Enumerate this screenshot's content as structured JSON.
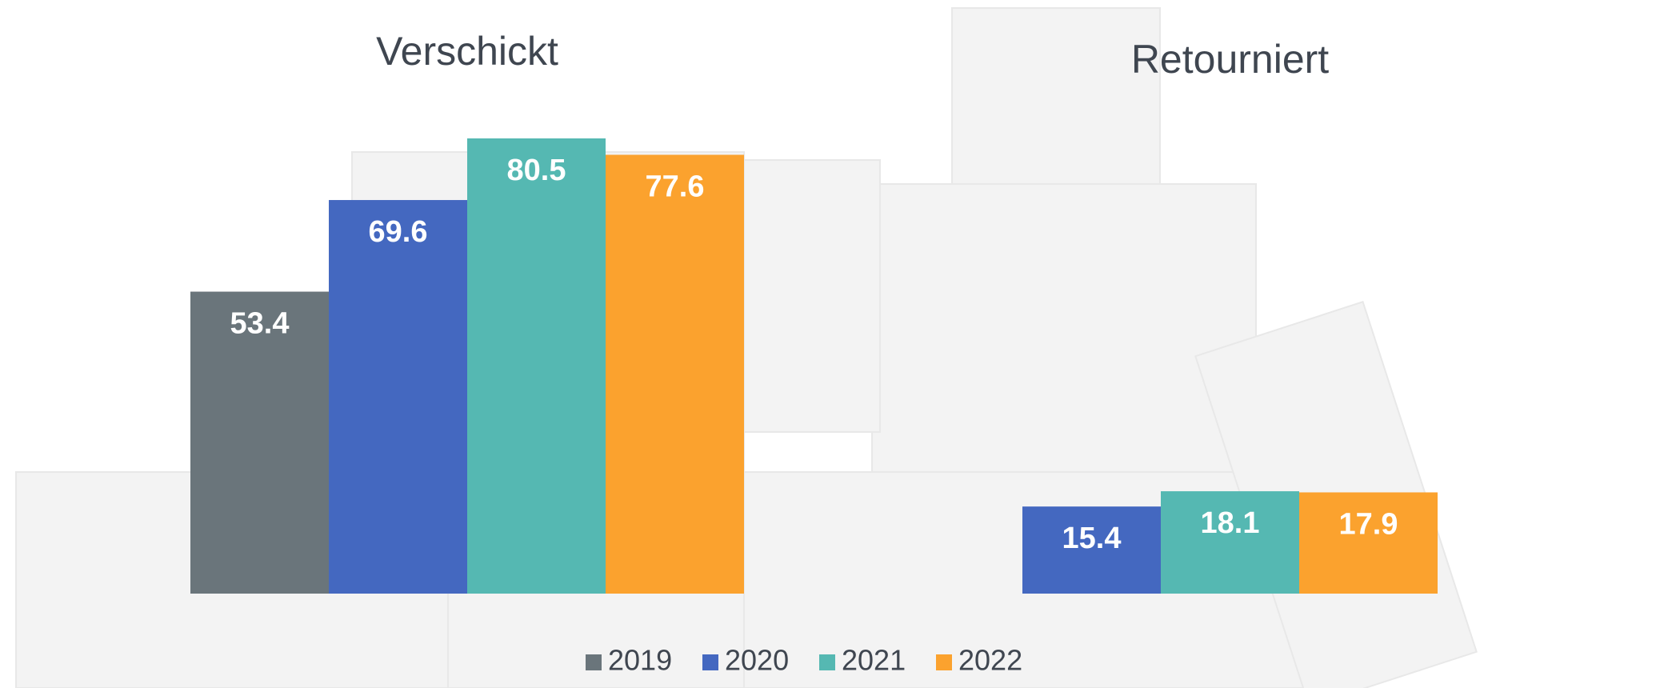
{
  "chart_data": {
    "type": "bar",
    "categories": [
      "Verschickt",
      "Retourniert"
    ],
    "series": [
      {
        "name": "2019",
        "color": "#6a757b",
        "values": [
          53.4,
          null
        ]
      },
      {
        "name": "2020",
        "color": "#4468c0",
        "values": [
          69.6,
          15.4
        ]
      },
      {
        "name": "2021",
        "color": "#55b8b2",
        "values": [
          80.5,
          18.1
        ]
      },
      {
        "name": "2022",
        "color": "#fba22e",
        "values": [
          77.6,
          17.9
        ]
      }
    ]
  }
}
